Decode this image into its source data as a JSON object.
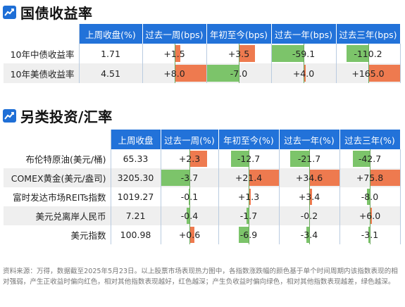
{
  "colors": {
    "header_blue": "#2272d9",
    "positive": "#ee7a4f",
    "negative": "#7cc46a"
  },
  "section1": {
    "title": "国债收益率",
    "icon": "chart-icon",
    "headers": [
      "上周收盘(%)",
      "过去一周(bps)",
      "年初至今(bps)",
      "过去一年(bps)",
      "过去三年(bps)"
    ],
    "rows": [
      {
        "label": "10年中债收益率",
        "close": "1.71",
        "w1": "+1.5",
        "ytd": "+3.5",
        "y1": "-59.1",
        "y3": "-110.2"
      },
      {
        "label": "10年美债收益率",
        "close": "4.51",
        "w1": "+8.0",
        "ytd": "-7.0",
        "y1": "+4.0",
        "y3": "+165.0"
      }
    ]
  },
  "section2": {
    "title": "另类投资/汇率",
    "icon": "chart-icon",
    "headers": [
      "上周收盘",
      "过去一周(%)",
      "年初至今(%)",
      "过去一年(%)",
      "过去三年(%)"
    ],
    "rows": [
      {
        "label": "布伦特原油(美元/桶)",
        "close": "65.33",
        "w1": "+2.3",
        "ytd": "-12.7",
        "y1": "-21.7",
        "y3": "-42.7"
      },
      {
        "label": "COMEX黄金(美元/盎司)",
        "close": "3205.30",
        "w1": "-3.7",
        "ytd": "+21.4",
        "y1": "+34.6",
        "y3": "+75.8"
      },
      {
        "label": "富时发达市场REITs指数",
        "close": "1019.27",
        "w1": "-0.1",
        "ytd": "+1.3",
        "y1": "+3.4",
        "y3": "-8.0"
      },
      {
        "label": "美元兑离岸人民币",
        "close": "7.21",
        "w1": "-0.4",
        "ytd": "-1.7",
        "y1": "-0.2",
        "y3": "+6.0"
      },
      {
        "label": "美元指数",
        "close": "100.98",
        "w1": "+0.6",
        "ytd": "-6.9",
        "y1": "-3.4",
        "y3": "-3.1"
      }
    ]
  },
  "footer": "资料来源：万得，数据截至2025年5月23日。以上股票市场表现热力图中，各指数涨跌幅的颜色基于单个时间周期内该指数表现的相对强弱，产生正收益时偏向红色，相对其他指数表现越好，红色越深；产生负收益时偏向绿色，相对其他指数表现越差，绿色越深。"
}
